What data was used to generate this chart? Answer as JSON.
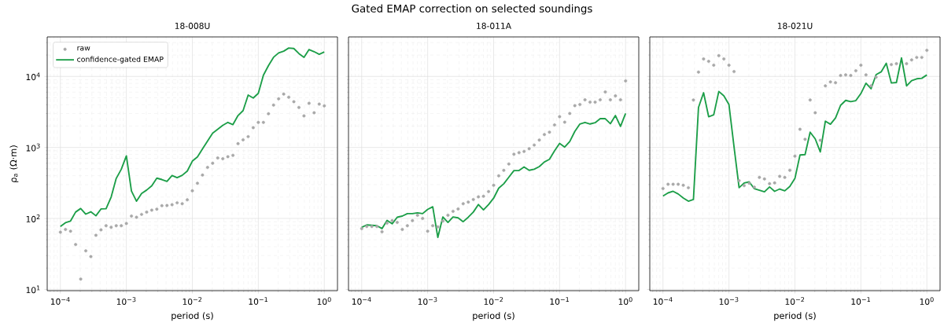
{
  "chart_data": [
    {
      "type": "line",
      "title": "18-008U",
      "annotations": [
        "Gated EMAP correction on selected soundings"
      ],
      "xlabel": "period (s)",
      "ylabel": "ρ$_{a}$  (Ω·m)",
      "log": "xy",
      "grid": true,
      "legend": "top left",
      "xlim": [
        6.31e-05,
        1.585
      ],
      "ylim": [
        9.6,
        36000
      ],
      "xticks": [
        {
          "value": 0.0001,
          "label": "10$^{−4}$"
        },
        {
          "value": 0.001,
          "label": "10$^{−3}$"
        },
        {
          "value": 0.01,
          "label": "10$^{−2}$"
        },
        {
          "value": 0.1,
          "label": "10$^{−1}$"
        },
        {
          "value": 1,
          "label": "10$^{0}$"
        }
      ],
      "yticks": [
        {
          "value": 10,
          "label": "10$^{1}$"
        },
        {
          "value": 100,
          "label": "10$^{2}$"
        },
        {
          "value": 1000,
          "label": "10$^{3}$"
        },
        {
          "value": 10000,
          "label": "10$^{4}$"
        }
      ],
      "x": [
        0.0001,
        0.0001194,
        0.0001425,
        0.0001701,
        0.0002031,
        0.0002425,
        0.0002894,
        0.0003455,
        0.0004125,
        0.0004924,
        0.0005878,
        0.0007017,
        0.0008377,
        0.001,
        0.001194,
        0.001425,
        0.001701,
        0.002031,
        0.002425,
        0.002894,
        0.003455,
        0.004125,
        0.004924,
        0.005878,
        0.007017,
        0.008377,
        0.01,
        0.01194,
        0.01425,
        0.01701,
        0.02031,
        0.02425,
        0.02894,
        0.03455,
        0.04125,
        0.04924,
        0.05878,
        0.07017,
        0.08377,
        0.1,
        0.1194,
        0.1425,
        0.1701,
        0.2031,
        0.2425,
        0.2894,
        0.3455,
        0.4125,
        0.4924,
        0.5878,
        0.7017,
        0.8377,
        1
      ],
      "series": [
        {
          "name": "raw",
          "type": "scatter",
          "marker": "circle",
          "color": "#a8a8a8",
          "values": [
            64,
            70,
            66,
            43,
            14,
            35,
            29,
            58,
            69,
            79,
            75,
            79,
            79,
            85,
            108,
            104,
            114,
            123,
            131,
            135,
            151,
            152,
            156,
            166,
            161,
            183,
            245,
            313,
            408,
            523,
            600,
            711,
            693,
            741,
            774,
            1130,
            1280,
            1420,
            1900,
            2250,
            2250,
            2980,
            3950,
            4840,
            5650,
            5090,
            4410,
            3650,
            2780,
            4190,
            3080,
            4080,
            3850
          ]
        },
        {
          "name": "confidence-gated EMAP",
          "color": "#1c9e48",
          "values": [
            77,
            87,
            92,
            123,
            138,
            115,
            124,
            109,
            136,
            137,
            200,
            366,
            493,
            761,
            243,
            175,
            225,
            251,
            288,
            369,
            353,
            333,
            402,
            375,
            405,
            464,
            641,
            736,
            951,
            1230,
            1590,
            1800,
            2050,
            2250,
            2100,
            2810,
            3300,
            5460,
            4970,
            5790,
            10400,
            14200,
            18600,
            21400,
            22700,
            25100,
            24700,
            21000,
            18600,
            23900,
            22300,
            20500,
            22100
          ]
        }
      ]
    },
    {
      "type": "line",
      "title": "18-011A",
      "xlabel": "period (s)",
      "log": "xy",
      "grid": true,
      "tick_labels": "x",
      "xlim": [
        6.31e-05,
        1.585
      ],
      "ylim": [
        9.6,
        36000
      ],
      "xticks": [
        {
          "value": 0.0001,
          "label": "10$^{−4}$"
        },
        {
          "value": 0.001,
          "label": "10$^{−3}$"
        },
        {
          "value": 0.01,
          "label": "10$^{−2}$"
        },
        {
          "value": 0.1,
          "label": "10$^{−1}$"
        },
        {
          "value": 1,
          "label": "10$^{0}$"
        }
      ],
      "yticks": [
        {
          "value": 10,
          "label": null
        },
        {
          "value": 100,
          "label": null
        },
        {
          "value": 1000,
          "label": null
        },
        {
          "value": 10000,
          "label": null
        }
      ],
      "x": [
        0.0001,
        0.0001194,
        0.0001425,
        0.0001701,
        0.0002031,
        0.0002425,
        0.0002894,
        0.0003455,
        0.0004125,
        0.0004924,
        0.0005878,
        0.0007017,
        0.0008377,
        0.001,
        0.001194,
        0.001425,
        0.001701,
        0.002031,
        0.002425,
        0.002894,
        0.003455,
        0.004125,
        0.004924,
        0.005878,
        0.007017,
        0.008377,
        0.01,
        0.01194,
        0.01425,
        0.01701,
        0.02031,
        0.02425,
        0.02894,
        0.03455,
        0.04125,
        0.04924,
        0.05878,
        0.07017,
        0.08377,
        0.1,
        0.1194,
        0.1425,
        0.1701,
        0.2031,
        0.2425,
        0.2894,
        0.3455,
        0.4125,
        0.4924,
        0.5878,
        0.7017,
        0.8377,
        1
      ],
      "series": [
        {
          "type": "scatter",
          "marker": "circle",
          "color": "#a8a8a8",
          "values": [
            72,
            77,
            77,
            77,
            65,
            86,
            93,
            88,
            70,
            79,
            93,
            111,
            100,
            66,
            79,
            76,
            92,
            111,
            126,
            136,
            161,
            170,
            185,
            201,
            205,
            239,
            293,
            398,
            476,
            585,
            801,
            844,
            879,
            957,
            1080,
            1270,
            1520,
            1640,
            2070,
            2710,
            2270,
            3010,
            3880,
            4020,
            4680,
            4340,
            4340,
            4680,
            6040,
            4680,
            5320,
            4680,
            8650
          ]
        },
        {
          "color": "#1c9e48",
          "values": [
            75,
            81,
            80,
            79,
            72,
            94,
            84,
            104,
            108,
            117,
            117,
            120,
            117,
            134,
            146,
            54,
            105,
            88,
            105,
            102,
            90,
            104,
            123,
            157,
            132,
            157,
            193,
            267,
            308,
            381,
            472,
            472,
            532,
            476,
            493,
            537,
            625,
            681,
            896,
            1140,
            1010,
            1210,
            1680,
            2140,
            2250,
            2140,
            2230,
            2540,
            2540,
            2160,
            2810,
            1980,
            3010
          ]
        }
      ]
    },
    {
      "type": "line",
      "title": "18-021U",
      "xlabel": "period (s)",
      "log": "xy",
      "grid": true,
      "tick_labels": "x",
      "xlim": [
        6.31e-05,
        1.585
      ],
      "ylim": [
        9.6,
        36000
      ],
      "xticks": [
        {
          "value": 0.0001,
          "label": "10$^{−4}$"
        },
        {
          "value": 0.001,
          "label": "10$^{−3}$"
        },
        {
          "value": 0.01,
          "label": "10$^{−2}$"
        },
        {
          "value": 0.1,
          "label": "10$^{−1}$"
        },
        {
          "value": 1,
          "label": "10$^{0}$"
        }
      ],
      "yticks": [
        {
          "value": 10,
          "label": null
        },
        {
          "value": 100,
          "label": null
        },
        {
          "value": 1000,
          "label": null
        },
        {
          "value": 10000,
          "label": null
        }
      ],
      "x": [
        0.0001,
        0.0001194,
        0.0001425,
        0.0001701,
        0.0002031,
        0.0002425,
        0.0002894,
        0.0003455,
        0.0004125,
        0.0004924,
        0.0005878,
        0.0007017,
        0.0008377,
        0.001,
        0.001194,
        0.001425,
        0.001701,
        0.002031,
        0.002425,
        0.002894,
        0.003455,
        0.004125,
        0.004924,
        0.005878,
        0.007017,
        0.008377,
        0.01,
        0.01194,
        0.01425,
        0.01701,
        0.02031,
        0.02425,
        0.02894,
        0.03455,
        0.04125,
        0.04924,
        0.05878,
        0.07017,
        0.08377,
        0.1,
        0.1194,
        0.1425,
        0.1701,
        0.2031,
        0.2425,
        0.2894,
        0.3455,
        0.4125,
        0.4924,
        0.5878,
        0.7017,
        0.8377,
        1
      ],
      "series": [
        {
          "type": "scatter",
          "marker": "circle",
          "color": "#a8a8a8",
          "values": [
            264,
            303,
            303,
            303,
            293,
            271,
            4650,
            11500,
            17600,
            16300,
            14400,
            19600,
            17600,
            14400,
            11700,
            341,
            290,
            313,
            276,
            378,
            360,
            308,
            316,
            392,
            378,
            476,
            755,
            1800,
            1300,
            4650,
            3080,
            1260,
            7360,
            8360,
            8150,
            10300,
            10500,
            10300,
            12000,
            14400,
            10500,
            7360,
            9750,
            null,
            null,
            14700,
            15100,
            null,
            15100,
            17100,
            18500,
            18500,
            23300
          ]
        },
        {
          "color": "#1c9e48",
          "values": [
            207,
            229,
            241,
            221,
            194,
            175,
            185,
            3660,
            5890,
            2710,
            2880,
            6150,
            5320,
            4020,
            1020,
            271,
            316,
            327,
            262,
            249,
            237,
            278,
            241,
            260,
            245,
            283,
            366,
            782,
            794,
            1640,
            1320,
            865,
            2340,
            2120,
            2600,
            3920,
            4600,
            4410,
            4560,
            5740,
            8020,
            6700,
            10600,
            11600,
            15300,
            8080,
            8220,
            18200,
            7360,
            8730,
            9260,
            9420,
            10500
          ]
        }
      ]
    }
  ]
}
